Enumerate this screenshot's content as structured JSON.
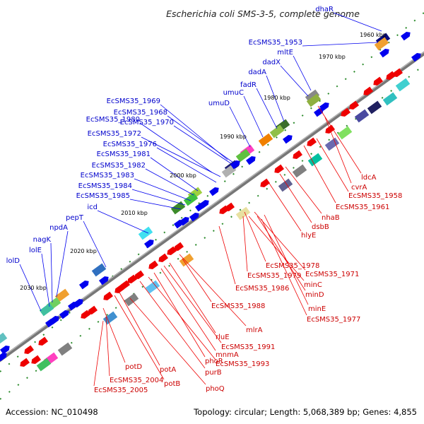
{
  "title": "Escherichia coli SMS-3-5, complete genome",
  "footer": {
    "accession": "Accession: NC_010498",
    "summary": "Topology: circular; Length: 5,068,389 bp; Genes: 4,855"
  },
  "ticks": [
    "1960 kbp",
    "1970 kbp",
    "1980 kbp",
    "1990 kbp",
    "2000 kbp",
    "2010 kbp",
    "2020 kbp",
    "2030 kbp"
  ],
  "outer_labels": [
    "dhaR",
    "EcSMS35_1953",
    "mltE",
    "dadX",
    "dadA",
    "fadR",
    "umuC",
    "umuD",
    "EcSMS35_1969",
    "EcSMS35_1968",
    "EcSMS35_1970",
    "EcSMS35_1980",
    "EcSMS35_1972",
    "EcSMS35_1976",
    "EcSMS35_1981",
    "EcSMS35_1982",
    "EcSMS35_1983",
    "EcSMS35_1984",
    "EcSMS35_1985",
    "icd",
    "pepT",
    "npdA",
    "nagK",
    "lolE",
    "lolD"
  ],
  "inner_labels": [
    "ldcA",
    "cvrA",
    "EcSMS35_1958",
    "EcSMS35_1961",
    "nhaB",
    "dsbB",
    "hlyE",
    "EcSMS35_1978",
    "EcSMS35_1971",
    "EcSMS35_1979",
    "minC",
    "EcSMS35_1986",
    "minD",
    "minE",
    "EcSMS35_1977",
    "EcSMS35_1988",
    "mlrA",
    "rluE",
    "EcSMS35_1991",
    "mnmA",
    "phoR",
    "EcSMS35_1993",
    "purB",
    "potA",
    "potD",
    "EcSMS35_2004",
    "potB",
    "phoQ",
    "EcSMS35_2005"
  ],
  "colors": {
    "forward": "#0000ee",
    "reverse": "#ee0000",
    "backbone": "#777777",
    "gc_tick": "#2a8a2a"
  }
}
